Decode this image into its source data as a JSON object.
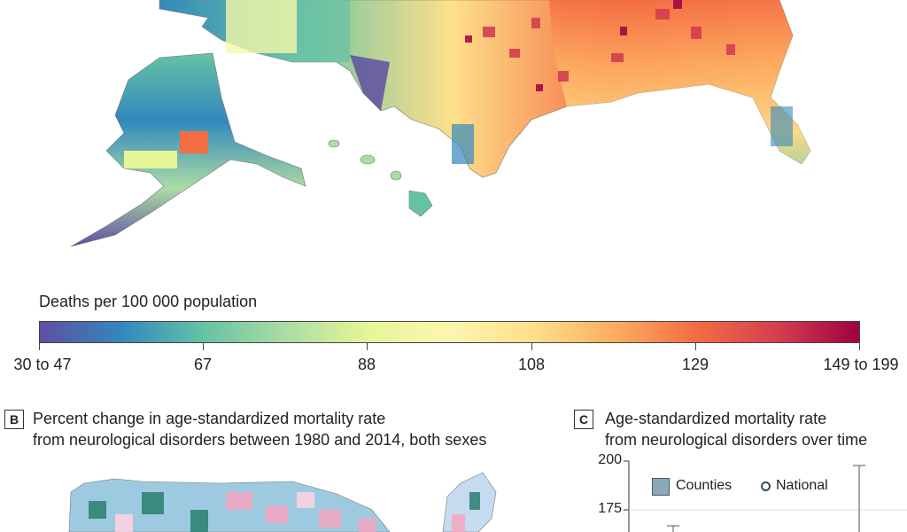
{
  "panel_a": {
    "legend_title": "Deaths per 100 000 population",
    "scale_labels": [
      "30 to 47",
      "67",
      "88",
      "108",
      "129",
      "149 to 199"
    ],
    "scale_colors": [
      "#5e4fa2",
      "#3288bd",
      "#66c2a5",
      "#abdda4",
      "#e6f598",
      "#fdf6b0",
      "#fee08b",
      "#fdae61",
      "#f46d43",
      "#d53e4f",
      "#9e0142"
    ]
  },
  "panel_b": {
    "letter": "B",
    "title_line1": "Percent change in age-standardized mortality rate",
    "title_line2": "from neurological disorders between 1980 and 2014, both sexes"
  },
  "panel_c": {
    "letter": "C",
    "title_line1": "Age-standardized mortality rate",
    "title_line2": "from neurological disorders over time",
    "legend_counties": "Counties",
    "legend_national": "National",
    "y_ticks": [
      "200",
      "175"
    ],
    "accent": "#89a9b8"
  }
}
